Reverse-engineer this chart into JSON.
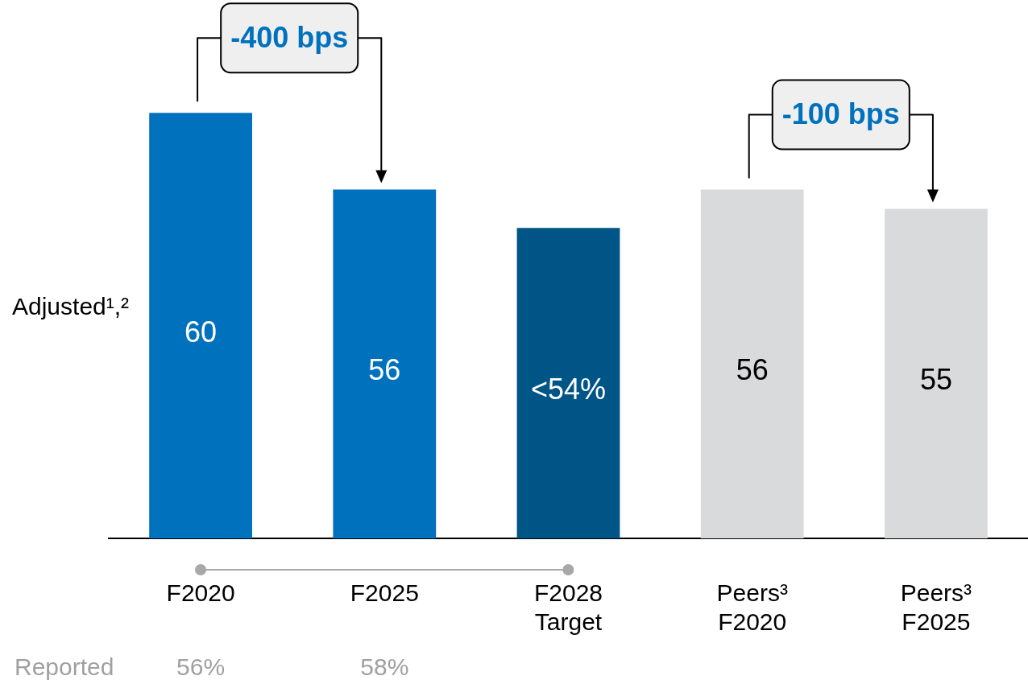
{
  "chart_data": {
    "type": "bar",
    "ylabel": "Adjusted¹,²",
    "categories": [
      "F2020",
      "F2025",
      "F2028\nTarget",
      "Peers³\nF2020",
      "Peers³\nF2025"
    ],
    "values": [
      60,
      56,
      54,
      56,
      55
    ],
    "value_labels": [
      "60",
      "56",
      "<54%",
      "56",
      "55"
    ],
    "colors": [
      "#0071bc",
      "#0071bc",
      "#005587",
      "#d9dadc",
      "#d9dadc"
    ],
    "tick_labels": "x",
    "grid": false,
    "legend": false,
    "annotations": [
      {
        "text": "-400 bps",
        "x": "F2020",
        "y": 60
      },
      {
        "text": "-100 bps",
        "x": "Peers³\nF2020",
        "y": 56
      },
      "Reported",
      "56%",
      "58%"
    ]
  }
}
